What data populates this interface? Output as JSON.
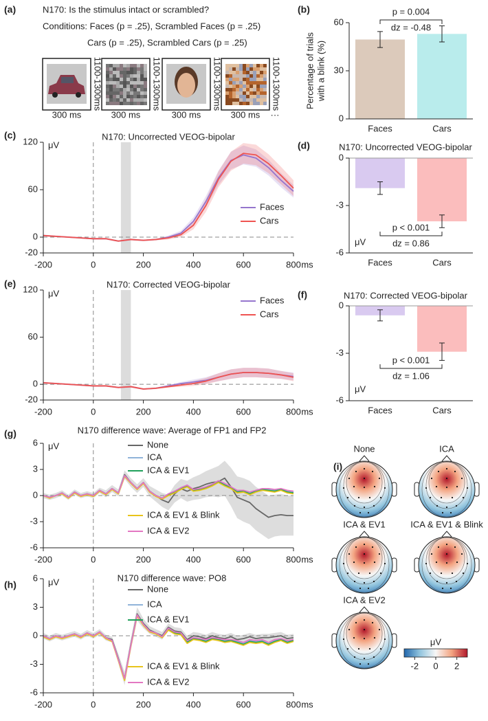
{
  "stimulus_panel": {
    "panel": "(a)",
    "task": "N170: Is the stimulus intact or scrambled?",
    "conditions": [
      "Conditions: Faces (p = .25), Scrambled Faces (p = .25)",
      "Cars (p = .25), Scrambled Cars (p = .25)"
    ],
    "trials": [
      {
        "duration": "300 ms",
        "isi": "1100-1300ms"
      },
      {
        "duration": "300 ms",
        "isi": "1100-1300ms"
      },
      {
        "duration": "300 ms",
        "isi": "1100-1300ms"
      },
      {
        "duration": "300 ms",
        "isi": "1100-1300ms"
      }
    ],
    "continuation": "···"
  },
  "chart_data": [
    {
      "type": "bar",
      "panel": "(b)",
      "y_label": [
        "Percentage of trials",
        "with a blink (%)"
      ],
      "categories": [
        "Faces",
        "Cars"
      ],
      "values": [
        49.5,
        53
      ],
      "errors": [
        5,
        5
      ],
      "colors": [
        "#dccabb",
        "#b9ecec"
      ],
      "ylim": [
        0,
        60
      ],
      "yticks": [
        0,
        30,
        60
      ],
      "annotation": {
        "p": "p = 0.004",
        "d": "dz = -0.48",
        "position": "top"
      }
    },
    {
      "type": "line",
      "panel": "(c)",
      "title": "N170: Uncorrected VEOG-bipolar",
      "y_label": "μV",
      "x_unit": "ms",
      "x": [
        -200,
        -150,
        -100,
        -50,
        0,
        50,
        100,
        150,
        200,
        250,
        300,
        350,
        400,
        450,
        500,
        550,
        600,
        650,
        700,
        750,
        800
      ],
      "xlim": [
        -200,
        800
      ],
      "xticks": [
        -200,
        0,
        200,
        400,
        600,
        800
      ],
      "ylim": [
        -20,
        120
      ],
      "yticks": [
        -20,
        0,
        60,
        120
      ],
      "highlight_window": [
        110,
        150
      ],
      "series": [
        {
          "name": "Faces",
          "color": "#9575cd",
          "values": [
            2,
            1,
            0,
            -1,
            -2,
            -2,
            -5,
            -3,
            -4,
            -3,
            0,
            5,
            20,
            45,
            75,
            97,
            104,
            100,
            88,
            72,
            58
          ],
          "ci": [
            1,
            1,
            1,
            1,
            1,
            1,
            1,
            1,
            1,
            1,
            2,
            3,
            5,
            7,
            9,
            11,
            12,
            11,
            10,
            9,
            8
          ]
        },
        {
          "name": "Cars",
          "color": "#ef5350",
          "values": [
            2,
            1,
            0,
            -1,
            -2,
            -2,
            -5,
            -3,
            -4,
            -3,
            -1,
            3,
            15,
            40,
            73,
            96,
            106,
            104,
            93,
            78,
            62
          ],
          "ci": [
            1,
            1,
            1,
            1,
            1,
            1,
            1,
            1,
            1,
            1,
            2,
            3,
            5,
            8,
            10,
            12,
            13,
            13,
            12,
            11,
            10
          ]
        }
      ]
    },
    {
      "type": "bar",
      "panel": "(d)",
      "title": "N170: Uncorrected VEOG-bipolar",
      "y_label": "μV",
      "categories": [
        "Faces",
        "Cars"
      ],
      "values": [
        -1.9,
        -4.0
      ],
      "errors": [
        0.4,
        0.4
      ],
      "colors": [
        "#d9caf0",
        "#fbbdbd"
      ],
      "ylim": [
        -6,
        0
      ],
      "yticks": [
        -6,
        -3,
        0
      ],
      "annotation": {
        "p": "p < 0.001",
        "d": "dz = 0.86",
        "position": "bottom"
      }
    },
    {
      "type": "line",
      "panel": "(e)",
      "title": "N170: Corrected VEOG-bipolar",
      "y_label": "μV",
      "x_unit": "ms",
      "x": [
        -200,
        -150,
        -100,
        -50,
        0,
        50,
        100,
        150,
        200,
        250,
        300,
        350,
        400,
        450,
        500,
        550,
        600,
        650,
        700,
        750,
        800
      ],
      "xlim": [
        -200,
        800
      ],
      "xticks": [
        -200,
        0,
        200,
        400,
        600,
        800
      ],
      "ylim": [
        -20,
        120
      ],
      "yticks": [
        -20,
        0,
        60,
        120
      ],
      "highlight_window": [
        110,
        150
      ],
      "series": [
        {
          "name": "Faces",
          "color": "#9575cd",
          "values": [
            2,
            1,
            0,
            -1,
            -2,
            -2,
            -4,
            -3,
            -6,
            -5,
            -2,
            1,
            3,
            5,
            9,
            13,
            15,
            15,
            14,
            12,
            10
          ],
          "ci": [
            1,
            1,
            1,
            1,
            1,
            1,
            1,
            1,
            1,
            1,
            1,
            2,
            3,
            4,
            5,
            6,
            6,
            6,
            6,
            5,
            5
          ]
        },
        {
          "name": "Cars",
          "color": "#ef5350",
          "values": [
            2,
            1,
            0,
            -1,
            -2,
            -2,
            -4,
            -3,
            -6,
            -5,
            -3,
            -1,
            1,
            4,
            9,
            13,
            15,
            15,
            14,
            12,
            9
          ],
          "ci": [
            1,
            1,
            1,
            1,
            1,
            1,
            1,
            1,
            1,
            1,
            1,
            2,
            3,
            4,
            5,
            6,
            6,
            6,
            6,
            5,
            5
          ]
        }
      ]
    },
    {
      "type": "bar",
      "panel": "(f)",
      "title": "N170: Corrected VEOG-bipolar",
      "y_label": "μV",
      "categories": [
        "Faces",
        "Cars"
      ],
      "values": [
        -0.6,
        -2.9
      ],
      "errors": [
        0.35,
        0.55
      ],
      "colors": [
        "#d9caf0",
        "#fbbdbd"
      ],
      "ylim": [
        -6,
        0
      ],
      "yticks": [
        -6,
        -3,
        0
      ],
      "annotation": {
        "p": "p < 0.001",
        "d": "dz = 1.06",
        "position": "bottom"
      }
    },
    {
      "type": "line",
      "panel": "(g)",
      "title": "N170 difference wave: Average of FP1 and FP2",
      "y_label": "μV",
      "x_unit": "ms",
      "x": [
        -200,
        -175,
        -150,
        -125,
        -100,
        -75,
        -50,
        -25,
        0,
        25,
        50,
        75,
        100,
        125,
        150,
        175,
        200,
        225,
        250,
        275,
        300,
        325,
        350,
        375,
        400,
        425,
        450,
        475,
        500,
        525,
        550,
        575,
        600,
        625,
        650,
        675,
        700,
        725,
        750,
        775,
        800
      ],
      "xlim": [
        -200,
        800
      ],
      "xticks": [
        -200,
        0,
        200,
        400,
        600,
        800
      ],
      "ylim": [
        -6,
        6
      ],
      "yticks": [
        -6,
        -3,
        0,
        3,
        6
      ],
      "series": [
        {
          "name": "None",
          "color": "#666666",
          "values": [
            0,
            -0.2,
            0,
            0.3,
            -0.2,
            0.4,
            0,
            0.2,
            0,
            0.6,
            0.2,
            0.8,
            0.3,
            2.4,
            1.5,
            0.8,
            1.5,
            0.5,
            0,
            -0.5,
            -0.8,
            0.2,
            0.8,
            0.5,
            0.8,
            1.0,
            1.3,
            1.5,
            1.6,
            2.0,
            1.0,
            -0.2,
            -0.5,
            -0.8,
            -1.5,
            -2.0,
            -2.5,
            -2.3,
            -2.2,
            -2.3,
            -2.3
          ],
          "ci": [
            0.3,
            0.3,
            0.3,
            0.3,
            0.3,
            0.3,
            0.3,
            0.3,
            0.3,
            0.3,
            0.4,
            0.4,
            0.4,
            0.5,
            0.5,
            0.5,
            0.5,
            0.6,
            0.7,
            0.8,
            0.9,
            1.0,
            1.1,
            1.2,
            1.3,
            1.4,
            1.5,
            1.6,
            1.8,
            2.0,
            2.2,
            2.4,
            2.5,
            2.5,
            2.5,
            2.5,
            2.5,
            2.4,
            2.4,
            2.3,
            2.3
          ]
        },
        {
          "name": "ICA",
          "color": "#8fb3d9",
          "values": [
            0,
            -0.2,
            0,
            0.3,
            -0.2,
            0.4,
            0,
            0.2,
            0,
            0.6,
            0.2,
            0.8,
            0.3,
            2.3,
            1.5,
            0.8,
            1.5,
            0.5,
            0,
            -0.3,
            0.2,
            0.5,
            0.9,
            1.2,
            0.6,
            0.8,
            1.0,
            1.3,
            1.7,
            1.3,
            1.0,
            0.5,
            0.6,
            0.3,
            0.6,
            0.8,
            0.7,
            0.6,
            0.8,
            0.5,
            0.4
          ]
        },
        {
          "name": "ICA & EV1",
          "color": "#1fa05a",
          "values": [
            0,
            -0.2,
            0,
            0.3,
            -0.2,
            0.4,
            0,
            0.2,
            0,
            0.6,
            0.2,
            0.8,
            0.3,
            2.3,
            1.5,
            0.8,
            1.5,
            0.5,
            0,
            -0.3,
            0.1,
            0.4,
            0.8,
            1.1,
            0.6,
            0.7,
            0.9,
            1.2,
            1.6,
            1.2,
            0.9,
            0.4,
            0.5,
            0.2,
            0.5,
            0.7,
            0.6,
            0.5,
            0.7,
            0.4,
            0.3
          ]
        },
        {
          "name": "ICA & EV1 & Blink",
          "color": "#e8c41a",
          "values": [
            0,
            -0.3,
            0,
            0.2,
            -0.3,
            0.3,
            -0.1,
            0.1,
            -0.1,
            0.5,
            0.1,
            0.7,
            0.2,
            2.2,
            1.4,
            0.7,
            1.4,
            0.4,
            -0.1,
            -0.4,
            0,
            0.3,
            0.7,
            1.0,
            0.5,
            0.6,
            0.8,
            1.1,
            1.5,
            1.1,
            0.8,
            0.3,
            0.4,
            0.1,
            0.4,
            0.6,
            0.5,
            0.4,
            0.6,
            0.3,
            0.2
          ]
        },
        {
          "name": "ICA & EV2",
          "color": "#e377c2",
          "values": [
            0,
            -0.2,
            0,
            0.3,
            -0.2,
            0.4,
            0,
            0.2,
            0,
            0.6,
            0.2,
            0.8,
            0.3,
            2.3,
            1.5,
            0.8,
            1.5,
            0.5,
            0,
            -0.3,
            0.2,
            0.5,
            0.9,
            1.2,
            0.7,
            0.8,
            1.0,
            1.3,
            1.7,
            1.4,
            1.0,
            0.6,
            0.6,
            0.4,
            0.6,
            0.8,
            0.8,
            0.7,
            0.8,
            0.6,
            0.5
          ]
        }
      ]
    },
    {
      "type": "line",
      "panel": "(h)",
      "title": "N170 difference wave: PO8",
      "y_label": "μV",
      "x_unit": "ms",
      "x": [
        -200,
        -175,
        -150,
        -125,
        -100,
        -75,
        -50,
        -25,
        0,
        25,
        50,
        75,
        100,
        125,
        150,
        175,
        200,
        225,
        250,
        275,
        300,
        325,
        350,
        375,
        400,
        425,
        450,
        475,
        500,
        525,
        550,
        575,
        600,
        625,
        650,
        675,
        700,
        725,
        750,
        775,
        800
      ],
      "xlim": [
        -200,
        800
      ],
      "xticks": [
        -200,
        0,
        200,
        400,
        600,
        800
      ],
      "ylim": [
        -6,
        6
      ],
      "yticks": [
        -6,
        -3,
        0,
        3,
        6
      ],
      "series": [
        {
          "name": "None",
          "color": "#666666",
          "values": [
            0,
            -0.3,
            0,
            -0.2,
            0,
            0.2,
            -0.1,
            0.3,
            0,
            0.4,
            -0.2,
            -0.4,
            -2.4,
            -4.5,
            -0.9,
            2.3,
            1.3,
            0.6,
            0.3,
            0,
            0.9,
            0.5,
            0.4,
            -0.4,
            0,
            -0.1,
            -0.3,
            0,
            -0.2,
            -0.3,
            -0.1,
            -0.4,
            -0.3,
            -0.1,
            -0.3,
            -0.2,
            -0.2,
            -0.1,
            0,
            -0.3,
            -0.2
          ],
          "ci": [
            0.3,
            0.3,
            0.3,
            0.3,
            0.3,
            0.3,
            0.3,
            0.3,
            0.3,
            0.3,
            0.3,
            0.3,
            0.5,
            0.7,
            0.6,
            0.7,
            0.5,
            0.4,
            0.4,
            0.4,
            0.4,
            0.4,
            0.4,
            0.4,
            0.4,
            0.4,
            0.4,
            0.4,
            0.4,
            0.4,
            0.4,
            0.4,
            0.4,
            0.4,
            0.4,
            0.4,
            0.4,
            0.4,
            0.4,
            0.4,
            0.4
          ]
        },
        {
          "name": "ICA",
          "color": "#8fb3d9",
          "values": [
            0,
            -0.3,
            0,
            -0.2,
            0,
            0.2,
            -0.1,
            0.3,
            0,
            0.4,
            -0.2,
            -0.5,
            -2.5,
            -4.6,
            -1,
            2.2,
            1.2,
            0.5,
            0.3,
            -0.1,
            0.8,
            0.4,
            0.3,
            -0.6,
            -0.2,
            -0.3,
            -0.5,
            -0.2,
            -0.3,
            -0.5,
            -0.4,
            -0.6,
            -0.8,
            -0.5,
            -0.6,
            -0.5,
            -0.8,
            -0.5,
            -0.3,
            -0.6,
            -0.4
          ]
        },
        {
          "name": "ICA & EV1",
          "color": "#1fa05a",
          "values": [
            0,
            -0.3,
            0,
            -0.2,
            0,
            0.2,
            -0.1,
            0.3,
            0,
            0.4,
            -0.2,
            -0.5,
            -2.5,
            -4.6,
            -1,
            2.2,
            1.2,
            0.5,
            0.3,
            -0.1,
            0.7,
            0.3,
            0.2,
            -0.7,
            -0.3,
            -0.4,
            -0.6,
            -0.3,
            -0.4,
            -0.6,
            -0.5,
            -0.7,
            -0.9,
            -0.6,
            -0.7,
            -0.6,
            -0.9,
            -0.6,
            -0.4,
            -0.7,
            -0.5
          ]
        },
        {
          "name": "ICA & EV1 & Blink",
          "color": "#e8c41a",
          "values": [
            -0.1,
            -0.4,
            -0.1,
            -0.3,
            -0.1,
            0.1,
            -0.2,
            0.2,
            -0.1,
            0.3,
            -0.3,
            -0.6,
            -2.6,
            -4.7,
            -1.1,
            2.1,
            1.1,
            0.4,
            0.2,
            -0.2,
            0.6,
            0.2,
            0.1,
            -0.8,
            -0.4,
            -0.5,
            -0.7,
            -0.4,
            -0.5,
            -0.7,
            -0.6,
            -0.8,
            -1.0,
            -0.7,
            -0.8,
            -0.7,
            -1.0,
            -0.7,
            -0.5,
            -0.8,
            -0.6
          ]
        },
        {
          "name": "ICA & EV2",
          "color": "#e377c2",
          "values": [
            0,
            -0.3,
            0,
            -0.2,
            0,
            0.2,
            -0.1,
            0.3,
            0,
            0.4,
            -0.2,
            -0.5,
            -2.5,
            -4.5,
            -1,
            2.2,
            1.2,
            0.5,
            0.3,
            -0.1,
            0.8,
            0.4,
            0.3,
            -0.5,
            -0.2,
            -0.3,
            -0.4,
            -0.2,
            -0.3,
            -0.4,
            -0.4,
            -0.5,
            -0.7,
            -0.4,
            -0.5,
            -0.4,
            -0.7,
            -0.4,
            -0.3,
            -0.5,
            -0.4
          ]
        }
      ]
    }
  ],
  "topomaps": {
    "panel": "(i)",
    "maps": [
      {
        "label": "None",
        "color": "#666666"
      },
      {
        "label": "ICA",
        "color": "#8fb3d9"
      },
      {
        "label": "ICA & EV1",
        "color": "#1fa05a"
      },
      {
        "label": "ICA & EV1 & Blink",
        "color": "#e8c41a"
      },
      {
        "label": "ICA & EV2",
        "color": "#e377c2"
      }
    ],
    "colorbar": {
      "label": "μV",
      "lim": [
        -3,
        3
      ],
      "ticks": [
        -2,
        0,
        2
      ],
      "colors": [
        "#2166ac",
        "#92c5de",
        "#f7f7f7",
        "#f4a582",
        "#b2182b"
      ]
    }
  }
}
